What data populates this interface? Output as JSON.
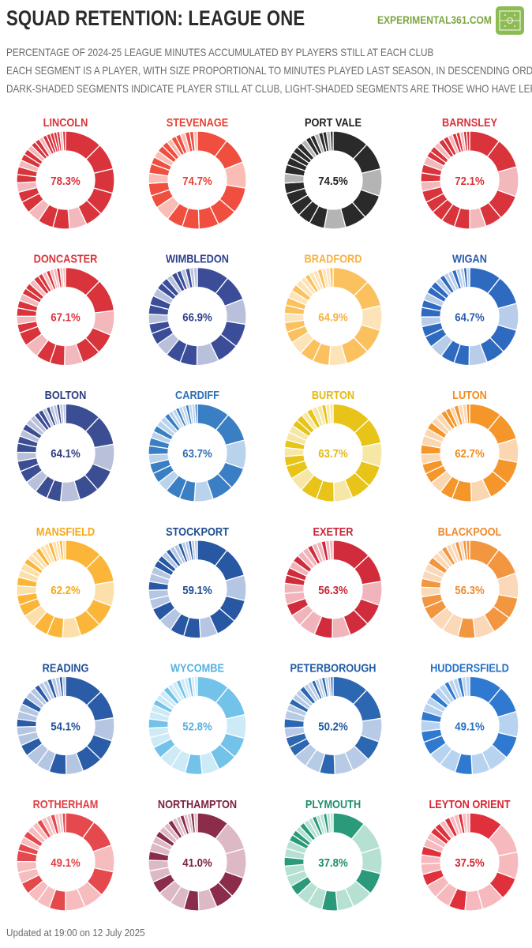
{
  "header": {
    "title": "SQUAD RETENTION: LEAGUE ONE",
    "brand": "EXPERIMENTAL361.COM",
    "subtitle_lines": [
      "PERCENTAGE OF 2024-25 LEAGUE MINUTES ACCUMULATED BY PLAYERS STILL AT EACH CLUB",
      "EACH SEGMENT IS A PLAYER, WITH SIZE PROPORTIONAL TO MINUTES PLAYED LAST SEASON, IN DESCENDING ORDER",
      "DARK-SHADED SEGMENTS INDICATE PLAYER STILL AT CLUB, LIGHT-SHADED SEGMENTS ARE THOSE WHO HAVE LEFT"
    ]
  },
  "footer": "Updated at 19:00 on 12 July 2025",
  "chart_data": {
    "type": "donut-grid",
    "title": "SQUAD RETENTION: LEAGUE ONE",
    "value_unit": "%",
    "columns": 4,
    "clubs": [
      {
        "name": "LINCOLN",
        "retention": 78.3,
        "retention_label": "78.3%",
        "color": "#d9333b",
        "light": "#f3b8bb",
        "label_color": "#d9333b"
      },
      {
        "name": "STEVENAGE",
        "retention": 74.7,
        "retention_label": "74.7%",
        "color": "#f04e3e",
        "light": "#f9bdb5",
        "label_color": "#e8402f"
      },
      {
        "name": "PORT VALE",
        "retention": 74.5,
        "retention_label": "74.5%",
        "color": "#2a2a2a",
        "light": "#b4b4b4",
        "label_color": "#222222"
      },
      {
        "name": "BARNSLEY",
        "retention": 72.1,
        "retention_label": "72.1%",
        "color": "#d9333b",
        "light": "#f3b8bb",
        "label_color": "#d9333b"
      },
      {
        "name": "DONCASTER",
        "retention": 67.1,
        "retention_label": "67.1%",
        "color": "#d9333b",
        "light": "#f3b8bb",
        "label_color": "#d9333b"
      },
      {
        "name": "WIMBLEDON",
        "retention": 66.9,
        "retention_label": "66.9%",
        "color": "#3b4d99",
        "light": "#b9c0dc",
        "label_color": "#2e3f8a"
      },
      {
        "name": "BRADFORD",
        "retention": 64.9,
        "retention_label": "64.9%",
        "color": "#fbc15e",
        "light": "#fde4b8",
        "label_color": "#f5b242"
      },
      {
        "name": "WIGAN",
        "retention": 64.7,
        "retention_label": "64.7%",
        "color": "#2f6ac1",
        "light": "#b8cdea",
        "label_color": "#2a5aab"
      },
      {
        "name": "BOLTON",
        "retention": 64.1,
        "retention_label": "64.1%",
        "color": "#3c4e93",
        "light": "#b9c0da",
        "label_color": "#2d3c7d"
      },
      {
        "name": "CARDIFF",
        "retention": 63.7,
        "retention_label": "63.7%",
        "color": "#3a7fc3",
        "light": "#b9d3ec",
        "label_color": "#2f6fb3"
      },
      {
        "name": "BURTON",
        "retention": 63.7,
        "retention_label": "63.7%",
        "color": "#e8c418",
        "light": "#f6e7a6",
        "label_color": "#e3b913"
      },
      {
        "name": "LUTON",
        "retention": 62.7,
        "retention_label": "62.7%",
        "color": "#f5962b",
        "light": "#fbd7b1",
        "label_color": "#f28a1c"
      },
      {
        "name": "MANSFIELD",
        "retention": 62.2,
        "retention_label": "62.2%",
        "color": "#fbb63a",
        "light": "#fde0a9",
        "label_color": "#f6a916"
      },
      {
        "name": "STOCKPORT",
        "retention": 59.1,
        "retention_label": "59.1%",
        "color": "#2858a3",
        "light": "#b4c6e3",
        "label_color": "#1f4d93"
      },
      {
        "name": "EXETER",
        "retention": 56.3,
        "retention_label": "56.3%",
        "color": "#d12c3c",
        "light": "#f1b4bb",
        "label_color": "#c92535"
      },
      {
        "name": "BLACKPOOL",
        "retention": 56.3,
        "retention_label": "56.3%",
        "color": "#f39640",
        "light": "#fbd8b8",
        "label_color": "#ef8a2e"
      },
      {
        "name": "READING",
        "retention": 54.1,
        "retention_label": "54.1%",
        "color": "#2a5ca8",
        "light": "#b5c6e3",
        "label_color": "#1f4f9a"
      },
      {
        "name": "WYCOMBE",
        "retention": 52.8,
        "retention_label": "52.8%",
        "color": "#72c2ea",
        "light": "#cdeaf7",
        "label_color": "#55b2e0"
      },
      {
        "name": "PETERBOROUGH",
        "retention": 50.2,
        "retention_label": "50.2%",
        "color": "#2c67b1",
        "light": "#b7cbe6",
        "label_color": "#1f5aa5"
      },
      {
        "name": "HUDDERSFIELD",
        "retention": 49.1,
        "retention_label": "49.1%",
        "color": "#2f7ad0",
        "light": "#b8d3f0",
        "label_color": "#2470c6"
      },
      {
        "name": "ROTHERHAM",
        "retention": 49.1,
        "retention_label": "49.1%",
        "color": "#e5484d",
        "light": "#f6bcbe",
        "label_color": "#e03e43"
      },
      {
        "name": "NORTHAMPTON",
        "retention": 41.0,
        "retention_label": "41.0%",
        "color": "#8a2c4a",
        "light": "#dcb9c5",
        "label_color": "#7d2040"
      },
      {
        "name": "PLYMOUTH",
        "retention": 37.8,
        "retention_label": "37.8%",
        "color": "#2a9a7a",
        "light": "#b5e0d2",
        "label_color": "#1f8e6d"
      },
      {
        "name": "LEYTON ORIENT",
        "retention": 37.5,
        "retention_label": "37.5%",
        "color": "#e0303c",
        "light": "#f6b9be",
        "label_color": "#d82433"
      }
    ]
  }
}
